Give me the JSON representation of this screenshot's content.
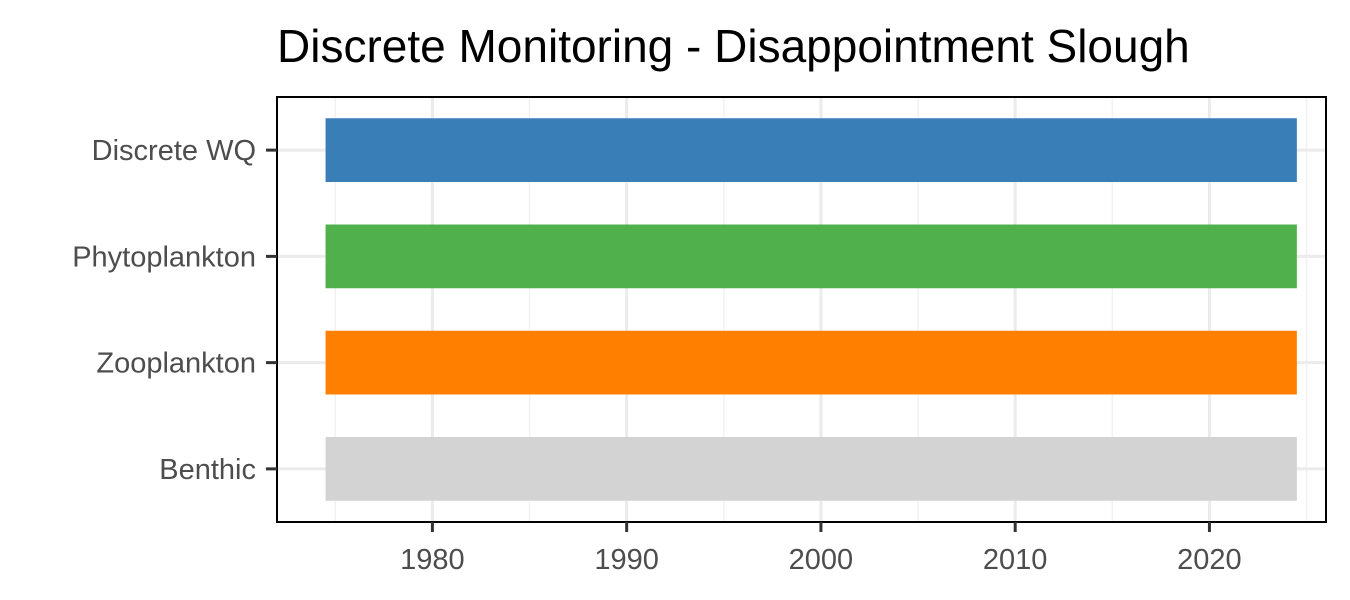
{
  "chart_data": {
    "type": "bar",
    "orientation": "horizontal-range",
    "title": "Discrete Monitoring - Disappointment Slough",
    "xlabel": "",
    "ylabel": "",
    "xlim": [
      1972,
      2026
    ],
    "x_ticks": [
      1980,
      1990,
      2000,
      2010,
      2020
    ],
    "x_tick_labels": [
      "1980",
      "1990",
      "2000",
      "2010",
      "2020"
    ],
    "x_minor_ticks": [
      1975,
      1985,
      1995,
      2005,
      2015,
      2025
    ],
    "grid": true,
    "legend": "none",
    "categories": [
      "Discrete WQ",
      "Phytoplankton",
      "Zooplankton",
      "Benthic"
    ],
    "series": [
      {
        "category": "Discrete WQ",
        "start": 1974.5,
        "end": 2024.5,
        "color": "#3a7eb8"
      },
      {
        "category": "Phytoplankton",
        "start": 1974.5,
        "end": 2024.5,
        "color": "#50b04b"
      },
      {
        "category": "Zooplankton",
        "start": 1974.5,
        "end": 2024.5,
        "color": "#ff8000"
      },
      {
        "category": "Benthic",
        "start": 1974.5,
        "end": 2024.5,
        "color": "#d3d3d3"
      }
    ]
  }
}
